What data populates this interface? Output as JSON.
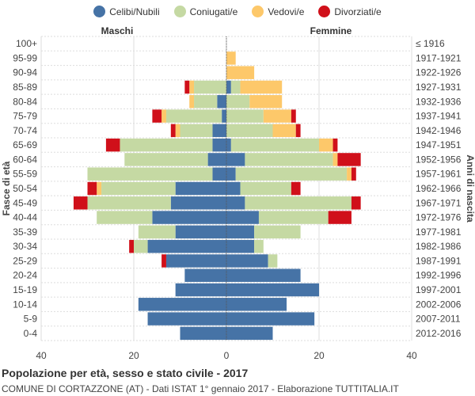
{
  "colors": {
    "celibi": "#4673a6",
    "coniugati": "#c5d9a3",
    "vedovi": "#fdc86a",
    "divorziati": "#d0101a",
    "grid": "#dddddd",
    "center_line": "#555555"
  },
  "legend": [
    {
      "key": "celibi",
      "label": "Celibi/Nubili"
    },
    {
      "key": "coniugati",
      "label": "Coniugati/e"
    },
    {
      "key": "vedovi",
      "label": "Vedovi/e"
    },
    {
      "key": "divorziati",
      "label": "Divorziati/e"
    }
  ],
  "footer": {
    "title": "Popolazione per età, sesso e stato civile - 2017",
    "subtitle": "COMUNE DI CORTAZZONE (AT) - Dati ISTAT 1° gennaio 2017 - Elaborazione TUTTITALIA.IT"
  },
  "chart_data": {
    "type": "bar",
    "orientation": "horizontal-population-pyramid",
    "left_header": "Maschi",
    "right_header": "Femmine",
    "ylabel_left": "Fasce di età",
    "ylabel_right": "Anni di nascita",
    "xlim": [
      -40,
      40
    ],
    "xticks": [
      -40,
      -20,
      0,
      20,
      40
    ],
    "xtick_labels": [
      "40",
      "20",
      "0",
      "20",
      "40"
    ],
    "grid": true,
    "age_groups": [
      "100+",
      "95-99",
      "90-94",
      "85-89",
      "80-84",
      "75-79",
      "70-74",
      "65-69",
      "60-64",
      "55-59",
      "50-54",
      "45-49",
      "40-44",
      "35-39",
      "30-34",
      "25-29",
      "20-24",
      "15-19",
      "10-14",
      "5-9",
      "0-4"
    ],
    "birth_years": [
      "≤ 1916",
      "1917-1921",
      "1922-1926",
      "1927-1931",
      "1932-1936",
      "1937-1941",
      "1942-1946",
      "1947-1951",
      "1952-1956",
      "1957-1961",
      "1962-1966",
      "1967-1971",
      "1972-1976",
      "1977-1981",
      "1982-1986",
      "1987-1991",
      "1992-1996",
      "1997-2001",
      "2002-2006",
      "2007-2011",
      "2012-2016"
    ],
    "males": {
      "celibi": [
        0,
        0,
        0,
        0,
        2,
        1,
        3,
        3,
        4,
        3,
        11,
        12,
        16,
        11,
        17,
        13,
        9,
        11,
        19,
        17,
        10
      ],
      "coniugati": [
        0,
        0,
        0,
        7,
        5,
        12,
        7,
        20,
        18,
        27,
        16,
        18,
        12,
        8,
        3,
        0,
        0,
        0,
        0,
        0,
        0
      ],
      "vedovi": [
        0,
        0,
        0,
        1,
        1,
        1,
        1,
        0,
        0,
        0,
        1,
        0,
        0,
        0,
        0,
        0,
        0,
        0,
        0,
        0,
        0
      ],
      "divorziati": [
        0,
        0,
        0,
        1,
        0,
        2,
        1,
        3,
        0,
        0,
        2,
        3,
        0,
        0,
        1,
        1,
        0,
        0,
        0,
        0,
        0
      ]
    },
    "females": {
      "nubili": [
        0,
        0,
        0,
        1,
        0,
        0,
        0,
        1,
        4,
        2,
        3,
        4,
        7,
        6,
        6,
        9,
        16,
        20,
        13,
        19,
        10
      ],
      "coniugate": [
        0,
        0,
        0,
        2,
        5,
        8,
        10,
        19,
        19,
        24,
        11,
        23,
        15,
        10,
        2,
        2,
        0,
        0,
        0,
        0,
        0
      ],
      "vedove": [
        0,
        2,
        6,
        9,
        7,
        6,
        5,
        3,
        1,
        1,
        0,
        0,
        0,
        0,
        0,
        0,
        0,
        0,
        0,
        0,
        0
      ],
      "divorziate": [
        0,
        0,
        0,
        0,
        0,
        1,
        1,
        1,
        5,
        1,
        2,
        2,
        5,
        0,
        0,
        0,
        0,
        0,
        0,
        0,
        0
      ]
    }
  }
}
